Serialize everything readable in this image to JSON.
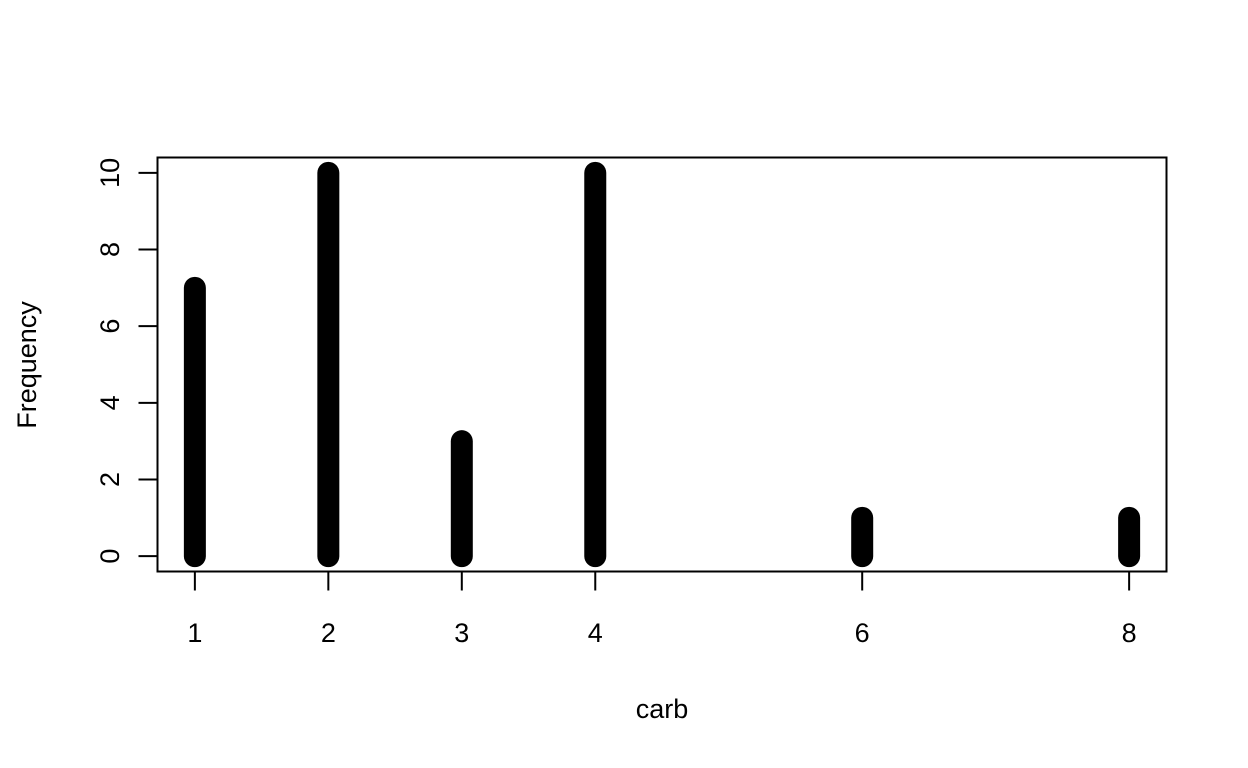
{
  "chart_data": {
    "type": "bar",
    "x": [
      1,
      2,
      3,
      4,
      6,
      8
    ],
    "values": [
      7,
      10,
      3,
      10,
      1,
      1
    ],
    "xlabel": "carb",
    "ylabel": "Frequency",
    "xticks": [
      "1",
      "2",
      "3",
      "4",
      "6",
      "8"
    ],
    "yticks": [
      "0",
      "2",
      "4",
      "6",
      "8",
      "10"
    ],
    "xlim": [
      0.72,
      8.28
    ],
    "ylim": [
      -0.4,
      10.4
    ],
    "grid": false,
    "bar_color": "#000000",
    "frame_color": "#000000"
  }
}
